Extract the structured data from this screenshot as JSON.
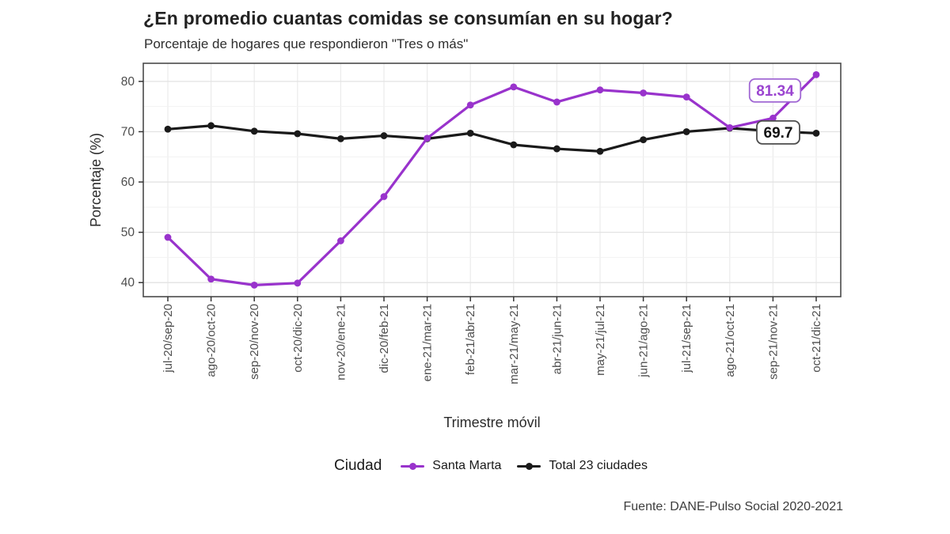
{
  "title": "¿En promedio cuantas comidas se consumían en su hogar?",
  "subtitle": "Porcentaje de hogares que respondieron \"Tres o más\"",
  "footer": "Fuente: DANE-Pulso Social 2020-2021",
  "legend": {
    "title": "Ciudad",
    "items": [
      {
        "label": "Santa Marta",
        "color": "#9933cc"
      },
      {
        "label": "Total 23 ciudades",
        "color": "#1a1a1a"
      }
    ]
  },
  "chart_data": {
    "type": "line",
    "title": "¿En promedio cuantas comidas se consumían en su hogar?",
    "subtitle": "Porcentaje de hogares que respondieron \"Tres o más\"",
    "xlabel": "Trimestre móvil",
    "ylabel": "Porcentaje (%)",
    "ylim": [
      37.2,
      83.6
    ],
    "yticks": [
      40,
      50,
      60,
      70,
      80
    ],
    "grid": true,
    "legend_position": "bottom",
    "categories": [
      "jul-20/sep-20",
      "ago-20/oct-20",
      "sep-20/nov-20",
      "oct-20/dic-20",
      "nov-20/ene-21",
      "dic-20/feb-21",
      "ene-21/mar-21",
      "feb-21/abr-21",
      "mar-21/may-21",
      "abr-21/jun-21",
      "may-21/jul-21",
      "jun-21/ago-21",
      "jul-21/sep-21",
      "ago-21/oct-21",
      "sep-21/nov-21",
      "oct-21/dic-21"
    ],
    "series": [
      {
        "name": "Santa Marta",
        "color": "#9933cc",
        "values": [
          49.0,
          40.7,
          39.5,
          39.9,
          48.3,
          57.1,
          68.7,
          75.3,
          78.9,
          75.9,
          78.3,
          77.7,
          76.9,
          70.8,
          72.7,
          81.34
        ]
      },
      {
        "name": "Total 23 ciudades",
        "color": "#1a1a1a",
        "values": [
          70.5,
          71.2,
          70.1,
          69.6,
          68.6,
          69.2,
          68.6,
          69.7,
          67.4,
          66.6,
          66.1,
          68.4,
          70.0,
          70.7,
          70.1,
          69.7
        ]
      }
    ],
    "annotations": [
      {
        "series": "Santa Marta",
        "text": "81.34",
        "text_color": "#9b45d0",
        "border_color": "#a168d4"
      },
      {
        "series": "Total 23 ciudades",
        "text": "69.7",
        "text_color": "#111111",
        "border_color": "#4d4d4d"
      }
    ]
  }
}
